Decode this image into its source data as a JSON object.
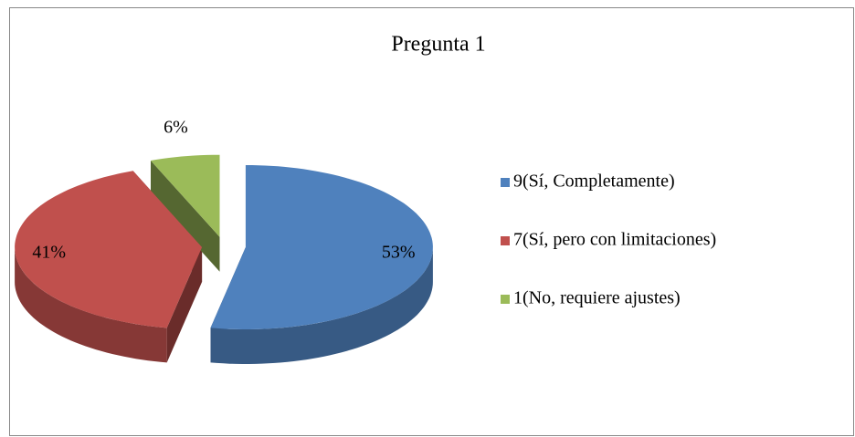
{
  "chart_data": {
    "type": "pie",
    "title": "Pregunta 1",
    "categories": [
      "9(Sí, Completamente)",
      "7(Sí, pero con limitaciones)",
      "1(No, requiere ajustes)"
    ],
    "values": [
      53,
      41,
      6
    ],
    "value_labels": [
      "53%",
      "41%",
      "6%"
    ],
    "colors": [
      "#4f81bd",
      "#c0504d",
      "#9bbb59"
    ],
    "legend": "right"
  }
}
